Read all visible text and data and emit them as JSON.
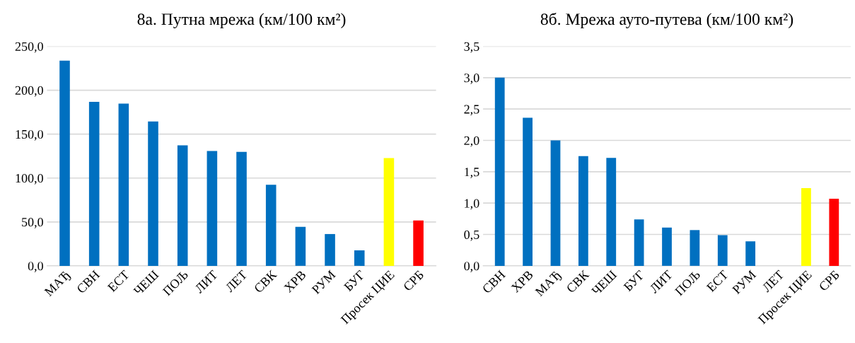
{
  "chart_data": [
    {
      "type": "bar",
      "title": "8а. Путна мрежа (км/100 км²)",
      "categories": [
        "МАЂ",
        "СВН",
        "ЕСТ",
        "ЧЕШ",
        "ПОЉ",
        "ЛИТ",
        "ЛЕТ",
        "СВК",
        "ХРВ",
        "РУМ",
        "БУГ",
        "Просек ЦИЕ",
        "СРБ"
      ],
      "values": [
        233.6,
        186.7,
        184.8,
        164.4,
        137.3,
        130.7,
        129.7,
        92.3,
        44.4,
        36.2,
        17.6,
        122.8,
        51.6
      ],
      "colors": [
        "#0070c0",
        "#0070c0",
        "#0070c0",
        "#0070c0",
        "#0070c0",
        "#0070c0",
        "#0070c0",
        "#0070c0",
        "#0070c0",
        "#0070c0",
        "#0070c0",
        "#ffff00",
        "#ff0000"
      ],
      "ylim": [
        0,
        250
      ],
      "yticks": [
        {
          "value": 0,
          "label": "0,0"
        },
        {
          "value": 50,
          "label": "50,0"
        },
        {
          "value": 100,
          "label": "100,0"
        },
        {
          "value": 150,
          "label": "150,0"
        },
        {
          "value": 200,
          "label": "200,0"
        },
        {
          "value": 250,
          "label": "250,0"
        }
      ],
      "grid": "y",
      "legend": false
    },
    {
      "type": "bar",
      "title": "8б. Мрежа ауто-путева (км/100 км²)",
      "categories": [
        "СВН",
        "ХРВ",
        "МАЂ",
        "СВК",
        "ЧЕШ",
        "БУГ",
        "ЛИТ",
        "ПОЉ",
        "ЕСТ",
        "РУМ",
        "ЛЕТ",
        "Просек ЦИЕ",
        "СРБ"
      ],
      "values": [
        3.0,
        2.36,
        2.0,
        1.75,
        1.72,
        0.74,
        0.61,
        0.57,
        0.49,
        0.39,
        0,
        1.24,
        1.07
      ],
      "colors": [
        "#0070c0",
        "#0070c0",
        "#0070c0",
        "#0070c0",
        "#0070c0",
        "#0070c0",
        "#0070c0",
        "#0070c0",
        "#0070c0",
        "#0070c0",
        "#0070c0",
        "#ffff00",
        "#ff0000"
      ],
      "ylim": [
        0,
        3.5
      ],
      "yticks": [
        {
          "value": 0,
          "label": "0,0"
        },
        {
          "value": 0.5,
          "label": "0,5"
        },
        {
          "value": 1,
          "label": "1,0"
        },
        {
          "value": 1.5,
          "label": "1,5"
        },
        {
          "value": 2,
          "label": "2,0"
        },
        {
          "value": 2.5,
          "label": "2,5"
        },
        {
          "value": 3,
          "label": "3,0"
        },
        {
          "value": 3.5,
          "label": "3,5"
        }
      ],
      "grid": "y",
      "legend": false
    }
  ]
}
